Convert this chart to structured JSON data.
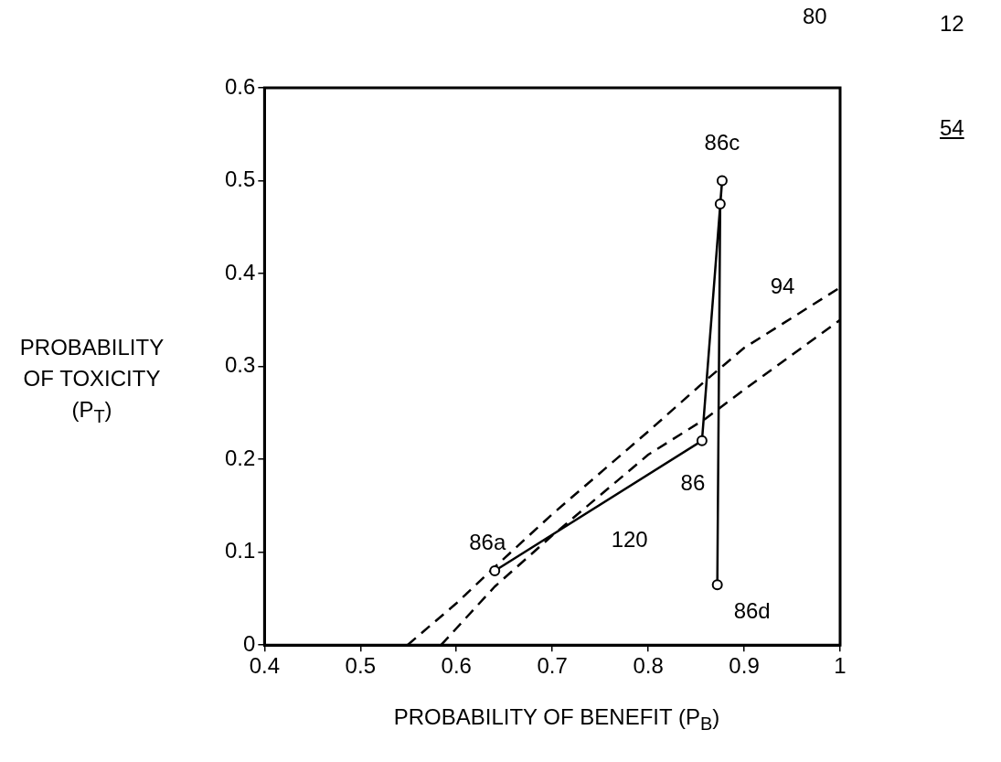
{
  "chart_data": {
    "type": "line",
    "xlabel": "PROBABILITY OF BENEFIT (P$_{B}$)",
    "ylabel": "PROBABILITY OF TOXICITY (P$_{T}$)",
    "xlim": [
      0.4,
      1
    ],
    "xticks": [
      0.4,
      0.5,
      0.6,
      0.7,
      0.8,
      0.9,
      1
    ],
    "ylim": [
      0,
      0.6
    ],
    "yticks": [
      0,
      0.1,
      0.2,
      0.3,
      0.4,
      0.5,
      0.6
    ],
    "grid": false,
    "series": [
      {
        "color": "#000000",
        "marker": "circle",
        "line_style": "solid",
        "x": [
          0.64,
          0.856,
          0.877,
          0.875,
          0.872
        ],
        "values": [
          0.08,
          0.22,
          0.5,
          0.475,
          0.065
        ]
      },
      {
        "color": "#000000",
        "marker": "none",
        "line_style": "dashed",
        "x": [
          0.549,
          0.6,
          0.64,
          0.7,
          0.8,
          0.86,
          0.9,
          1
        ],
        "values": [
          0,
          0.045,
          0.084,
          0.141,
          0.23,
          0.285,
          0.32,
          0.385
        ]
      },
      {
        "color": "#000000",
        "marker": "none",
        "line_style": "dashed",
        "x": [
          0.584,
          0.64,
          0.7,
          0.8,
          0.86,
          0.9,
          1
        ],
        "values": [
          0,
          0.063,
          0.118,
          0.205,
          0.244,
          0.275,
          0.35
        ]
      }
    ],
    "annotations": [
      {
        "text": "86a",
        "x": 0.64,
        "y": 0.08
      },
      {
        "text": "86",
        "x": 0.856,
        "y": 0.22
      },
      {
        "text": "86c",
        "x": 0.877,
        "y": 0.5
      },
      {
        "text": "86d",
        "x": 0.872,
        "y": 0.065
      },
      {
        "text": "120",
        "x": 0.75,
        "y": 0.15
      },
      {
        "text": "94",
        "x": 0.94,
        "y": 0.346
      },
      "80",
      "12",
      "54"
    ]
  }
}
